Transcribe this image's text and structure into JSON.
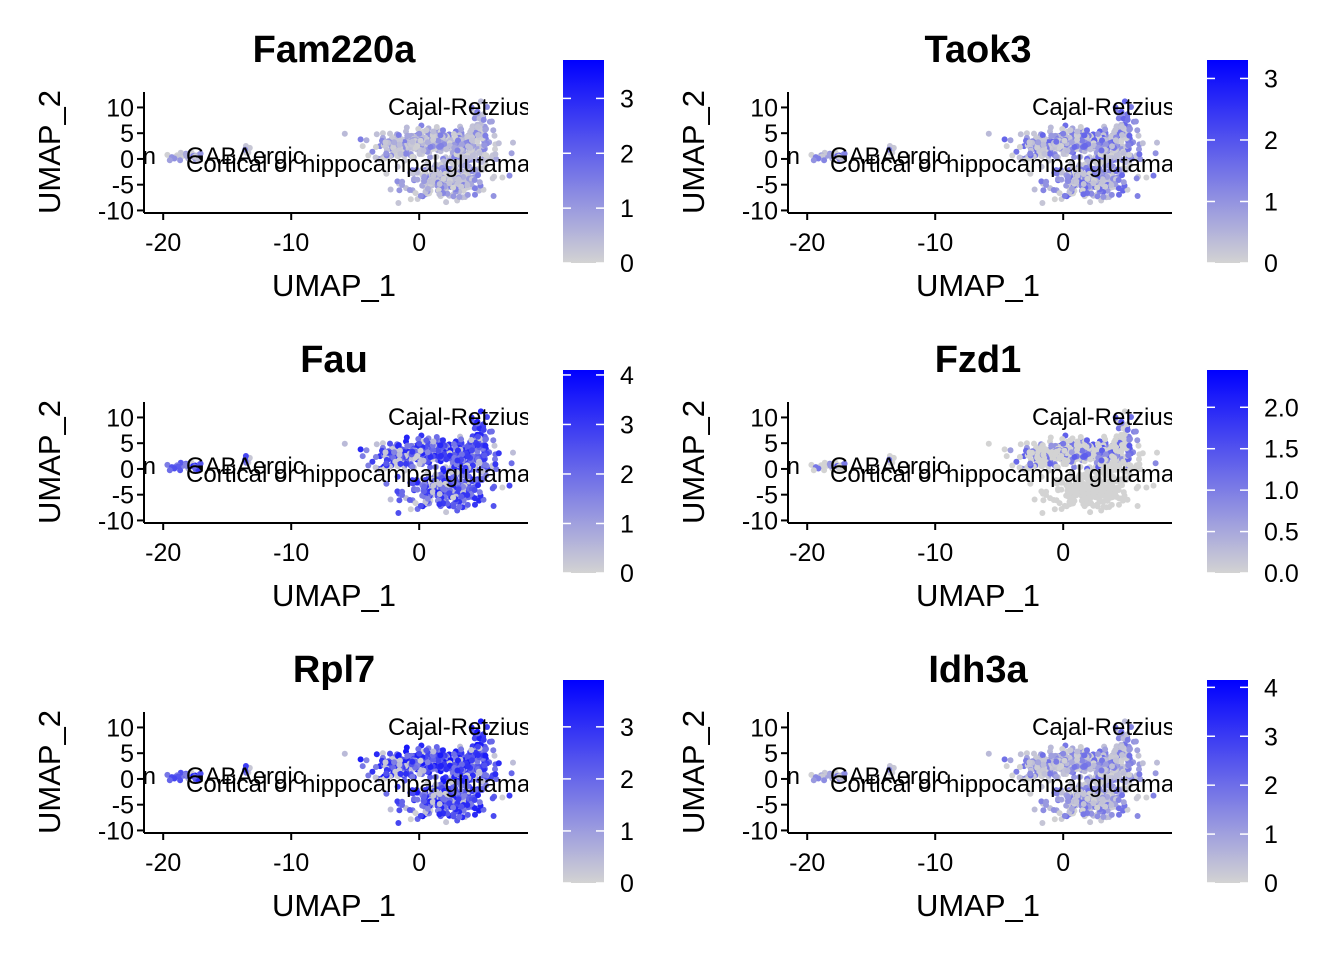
{
  "chart_data": [
    {
      "type": "scatter",
      "title": "Fam220a",
      "xlabel": "UMAP_1",
      "ylabel": "UMAP_2",
      "x_ticks": [
        -20,
        -10,
        0
      ],
      "y_ticks": [
        10,
        5,
        0,
        -5,
        -10
      ],
      "xlim": [
        -21.5,
        8.5
      ],
      "ylim": [
        -10.5,
        13
      ],
      "color_scale": {
        "low": "#d3d3d3",
        "high": "#0000ff",
        "min": 0,
        "max": 3.7,
        "ticks": [
          0,
          1,
          2,
          3
        ],
        "tick_labels": [
          "0",
          "1",
          "2",
          "3"
        ]
      },
      "expression_level": 0.35,
      "cluster_labels": [
        "Cajal-Retzius",
        "GABAergic",
        "Cortical or hippocampal glutamatergic",
        "Brain"
      ]
    },
    {
      "type": "scatter",
      "title": "Taok3",
      "xlabel": "UMAP_1",
      "ylabel": "UMAP_2",
      "x_ticks": [
        -20,
        -10,
        0
      ],
      "y_ticks": [
        10,
        5,
        0,
        -5,
        -10
      ],
      "xlim": [
        -21.5,
        8.5
      ],
      "ylim": [
        -10.5,
        13
      ],
      "color_scale": {
        "low": "#d3d3d3",
        "high": "#0000ff",
        "min": 0,
        "max": 3.3,
        "ticks": [
          0,
          1,
          2,
          3
        ],
        "tick_labels": [
          "0",
          "1",
          "2",
          "3"
        ]
      },
      "expression_level": 0.45,
      "cluster_labels": [
        "Cajal-Retzius",
        "GABAergic",
        "Cortical or hippocampal glutamatergic",
        "Brain"
      ]
    },
    {
      "type": "scatter",
      "title": "Fau",
      "xlabel": "UMAP_1",
      "ylabel": "UMAP_2",
      "x_ticks": [
        -20,
        -10,
        0
      ],
      "y_ticks": [
        10,
        5,
        0,
        -5,
        -10
      ],
      "xlim": [
        -21.5,
        8.5
      ],
      "ylim": [
        -10.5,
        13
      ],
      "color_scale": {
        "low": "#d3d3d3",
        "high": "#0000ff",
        "min": 0,
        "max": 4.1,
        "ticks": [
          0,
          1,
          2,
          3,
          4
        ],
        "tick_labels": [
          "0",
          "1",
          "2",
          "3",
          "4"
        ]
      },
      "expression_level": 0.7,
      "cluster_labels": [
        "Cajal-Retzius",
        "GABAergic",
        "Cortical or hippocampal glutamatergic",
        "Brain"
      ]
    },
    {
      "type": "scatter",
      "title": "Fzd1",
      "xlabel": "UMAP_1",
      "ylabel": "UMAP_2",
      "x_ticks": [
        -20,
        -10,
        0
      ],
      "y_ticks": [
        10,
        5,
        0,
        -5,
        -10
      ],
      "xlim": [
        -21.5,
        8.5
      ],
      "ylim": [
        -10.5,
        13
      ],
      "color_scale": {
        "low": "#d3d3d3",
        "high": "#0000ff",
        "min": 0,
        "max": 2.45,
        "ticks": [
          0,
          0.5,
          1,
          1.5,
          2
        ],
        "tick_labels": [
          "0.0",
          "0.5",
          "1.0",
          "1.5",
          "2.0"
        ]
      },
      "expression_level": 0.08,
      "cluster_labels": [
        "Cajal-Retzius",
        "GABAergic",
        "Cortical or hippocampal glutamatergic",
        "Brain"
      ]
    },
    {
      "type": "scatter",
      "title": "Rpl7",
      "xlabel": "UMAP_1",
      "ylabel": "UMAP_2",
      "x_ticks": [
        -20,
        -10,
        0
      ],
      "y_ticks": [
        10,
        5,
        0,
        -5,
        -10
      ],
      "xlim": [
        -21.5,
        8.5
      ],
      "ylim": [
        -10.5,
        13
      ],
      "color_scale": {
        "low": "#d3d3d3",
        "high": "#0000ff",
        "min": 0,
        "max": 3.9,
        "ticks": [
          0,
          1,
          2,
          3
        ],
        "tick_labels": [
          "0",
          "1",
          "2",
          "3"
        ]
      },
      "expression_level": 0.75,
      "cluster_labels": [
        "Cajal-Retzius",
        "GABAergic",
        "Cortical or hippocampal glutamatergic",
        "Brain"
      ]
    },
    {
      "type": "scatter",
      "title": "Idh3a",
      "xlabel": "UMAP_1",
      "ylabel": "UMAP_2",
      "x_ticks": [
        -20,
        -10,
        0
      ],
      "y_ticks": [
        10,
        5,
        0,
        -5,
        -10
      ],
      "xlim": [
        -21.5,
        8.5
      ],
      "ylim": [
        -10.5,
        13
      ],
      "color_scale": {
        "low": "#d3d3d3",
        "high": "#0000ff",
        "min": 0,
        "max": 4.15,
        "ticks": [
          0,
          1,
          2,
          3,
          4
        ],
        "tick_labels": [
          "0",
          "1",
          "2",
          "3",
          "4"
        ]
      },
      "expression_level": 0.4,
      "cluster_labels": [
        "Cajal-Retzius",
        "GABAergic",
        "Cortical or hippocampal glutamatergic",
        "Brain"
      ]
    }
  ]
}
